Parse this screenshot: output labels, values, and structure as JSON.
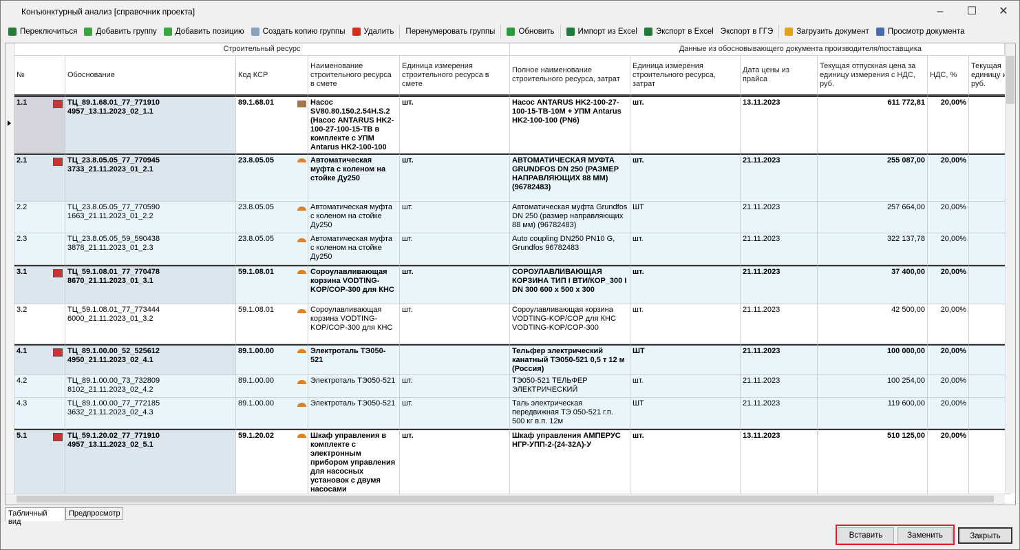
{
  "window": {
    "title": "Конъюнктурный анализ [справочник проекта]"
  },
  "toolbar": [
    "Переключиться",
    "Добавить группу",
    "Добавить позицию",
    "Создать копию группы",
    "Удалить",
    "Перенумеровать группы",
    "Обновить",
    "Импорт из Excel",
    "Экспорт в Excel",
    "Экспорт в ГГЭ",
    "Загрузить документ",
    "Просмотр документа"
  ],
  "table": {
    "groups": [
      "Строительный ресурс",
      "Данные из обосновывающего документа производителя/поставщика"
    ],
    "columns": [
      "№",
      "Обоснование",
      "Код КСР",
      "Наименование строительного ресурса в смете",
      "Единица измерения строительного ресурса в смете",
      "Полное наименование строительного ресурса, затрат",
      "Единица измерения строительного ресурса, затрат",
      "Дата цены из прайса",
      "Текущая отпускная цена за единицу измерения с НДС, руб.",
      "НДС, %",
      "Текущая\nединицу и\nруб."
    ],
    "rows": [
      {
        "group": true,
        "cells": [
          "1.1",
          "ТЦ_89.1.68.01_77_771910\n4957_13.11.2023_02_1.1",
          "89.1.68.01",
          "Насос SV80.80.150.2.54H.S.2 (Насос ANTARUS HK2-100-27-100-15-TB в комплекте с УПМ Antarus HK2-100-100",
          "шт.",
          "Насос ANTARUS HK2-100-27-100-15-TB-10M + УПМ Antarus HK2-100-100 (PN6)",
          "шт.",
          "13.11.2023",
          "611 772,81",
          "20,00%"
        ]
      },
      {
        "group": true,
        "cells": [
          "2.1",
          "ТЦ_23.8.05.05_77_770945\n3733_21.11.2023_01_2.1",
          "23.8.05.05",
          "Автоматическая муфта с коленом на стойке Ду250",
          "шт.",
          "АВТОМАТИЧЕСКАЯ МУФТА GRUNDFOS DN 250 (РАЗМЕР НАПРАВЛЯЮЩИХ 88 ММ) (96782483)",
          "шт.",
          "21.11.2023",
          "255 087,00",
          "20,00%"
        ]
      },
      {
        "group": false,
        "cells": [
          "2.2",
          "ТЦ_23.8.05.05_77_770590\n1663_21.11.2023_01_2.2",
          "23.8.05.05",
          "Автоматическая муфта с коленом на стойке Ду250",
          "шт.",
          "Автоматическая муфта Grundfos DN 250 (размер направляющих 88 мм) (96782483)",
          "ШТ",
          "21.11.2023",
          "257 664,00",
          "20,00%"
        ]
      },
      {
        "group": false,
        "cells": [
          "2.3",
          "ТЦ_23.8.05.05_59_590438\n3878_21.11.2023_01_2.3",
          "23.8.05.05",
          "Автоматическая муфта с коленом на стойке Ду250",
          "шт.",
          "Auto coupling DN250 PN10 G, Grundfos 96782483",
          "шт.",
          "21.11.2023",
          "322 137,78",
          "20,00%"
        ]
      },
      {
        "group": true,
        "cells": [
          "3.1",
          "ТЦ_59.1.08.01_77_770478\n8670_21.11.2023_01_3.1",
          "59.1.08.01",
          "Сороулавливающая корзина VODTING-KOP/COP-300 для КНС",
          "шт.",
          "СОРОУЛАВЛИВАЮЩАЯ КОРЗИНА ТИП I ВТИ/КОР_300 I DN 300 600 x 500 x 300",
          "шт.",
          "21.11.2023",
          "37 400,00",
          "20,00%"
        ]
      },
      {
        "group": false,
        "cells": [
          "3.2",
          "ТЦ_59.1.08.01_77_773444\n6000_21.11.2023_01_3.2",
          "59.1.08.01",
          "Сороулавливающая корзина VODTING-KOP/COP-300 для КНС",
          "шт.",
          "Сороулавливающая корзина VODTING-KOP/COP для КНС VODTING-KOP/COP-300",
          "шт.",
          "21.11.2023",
          "42 500,00",
          "20,00%"
        ]
      },
      {
        "group": true,
        "cells": [
          "4.1",
          "ТЦ_89.1.00.00_52_525612\n4950_21.11.2023_02_4.1",
          "89.1.00.00",
          "Электроталь ТЭ050-521",
          null,
          "Тельфер электрический канатный ТЭ050-521 0,5 т 12 м (Россия)",
          "ШТ",
          "21.11.2023",
          "100 000,00",
          "20,00%"
        ]
      },
      {
        "group": false,
        "cells": [
          "4.2",
          "ТЦ_89.1.00.00_73_732809\n8102_21.11.2023_02_4.2",
          "89.1.00.00",
          "Электроталь ТЭ050-521",
          "шт.",
          "ТЭ050-521 ТЕЛЬФЕР ЭЛЕКТРИЧЕСКИЙ",
          "шт.",
          "21.11.2023",
          "100 254,00",
          "20,00%"
        ]
      },
      {
        "group": false,
        "cells": [
          "4.3",
          "ТЦ_89.1.00.00_77_772185\n3632_21.11.2023_02_4.3",
          "89.1.00.00",
          "Электроталь ТЭ050-521",
          "шт.",
          "Таль электрическая передвижная ТЭ 050-521 г.п. 500 кг в.п. 12м",
          "ШТ",
          "21.11.2023",
          "119 600,00",
          "20,00%"
        ]
      },
      {
        "group": true,
        "cells": [
          "5.1",
          "ТЦ_59.1.20.02_77_771910\n4957_13.11.2023_02_5.1",
          "59.1.20.02",
          "Шкаф управления в комплекте с электронным прибором управления для насосных установок с двумя насосами",
          "шт.",
          "Шкаф управления АМПЕРУС НГР-УПП-2-(24-32А)-У",
          "шт.",
          "13.11.2023",
          "510 125,00",
          "20,00%"
        ]
      }
    ]
  },
  "tabs": [
    "Табличный вид",
    "Предпросмотр"
  ],
  "buttons": [
    "Вставить",
    "Заменить",
    "Закрыть"
  ]
}
